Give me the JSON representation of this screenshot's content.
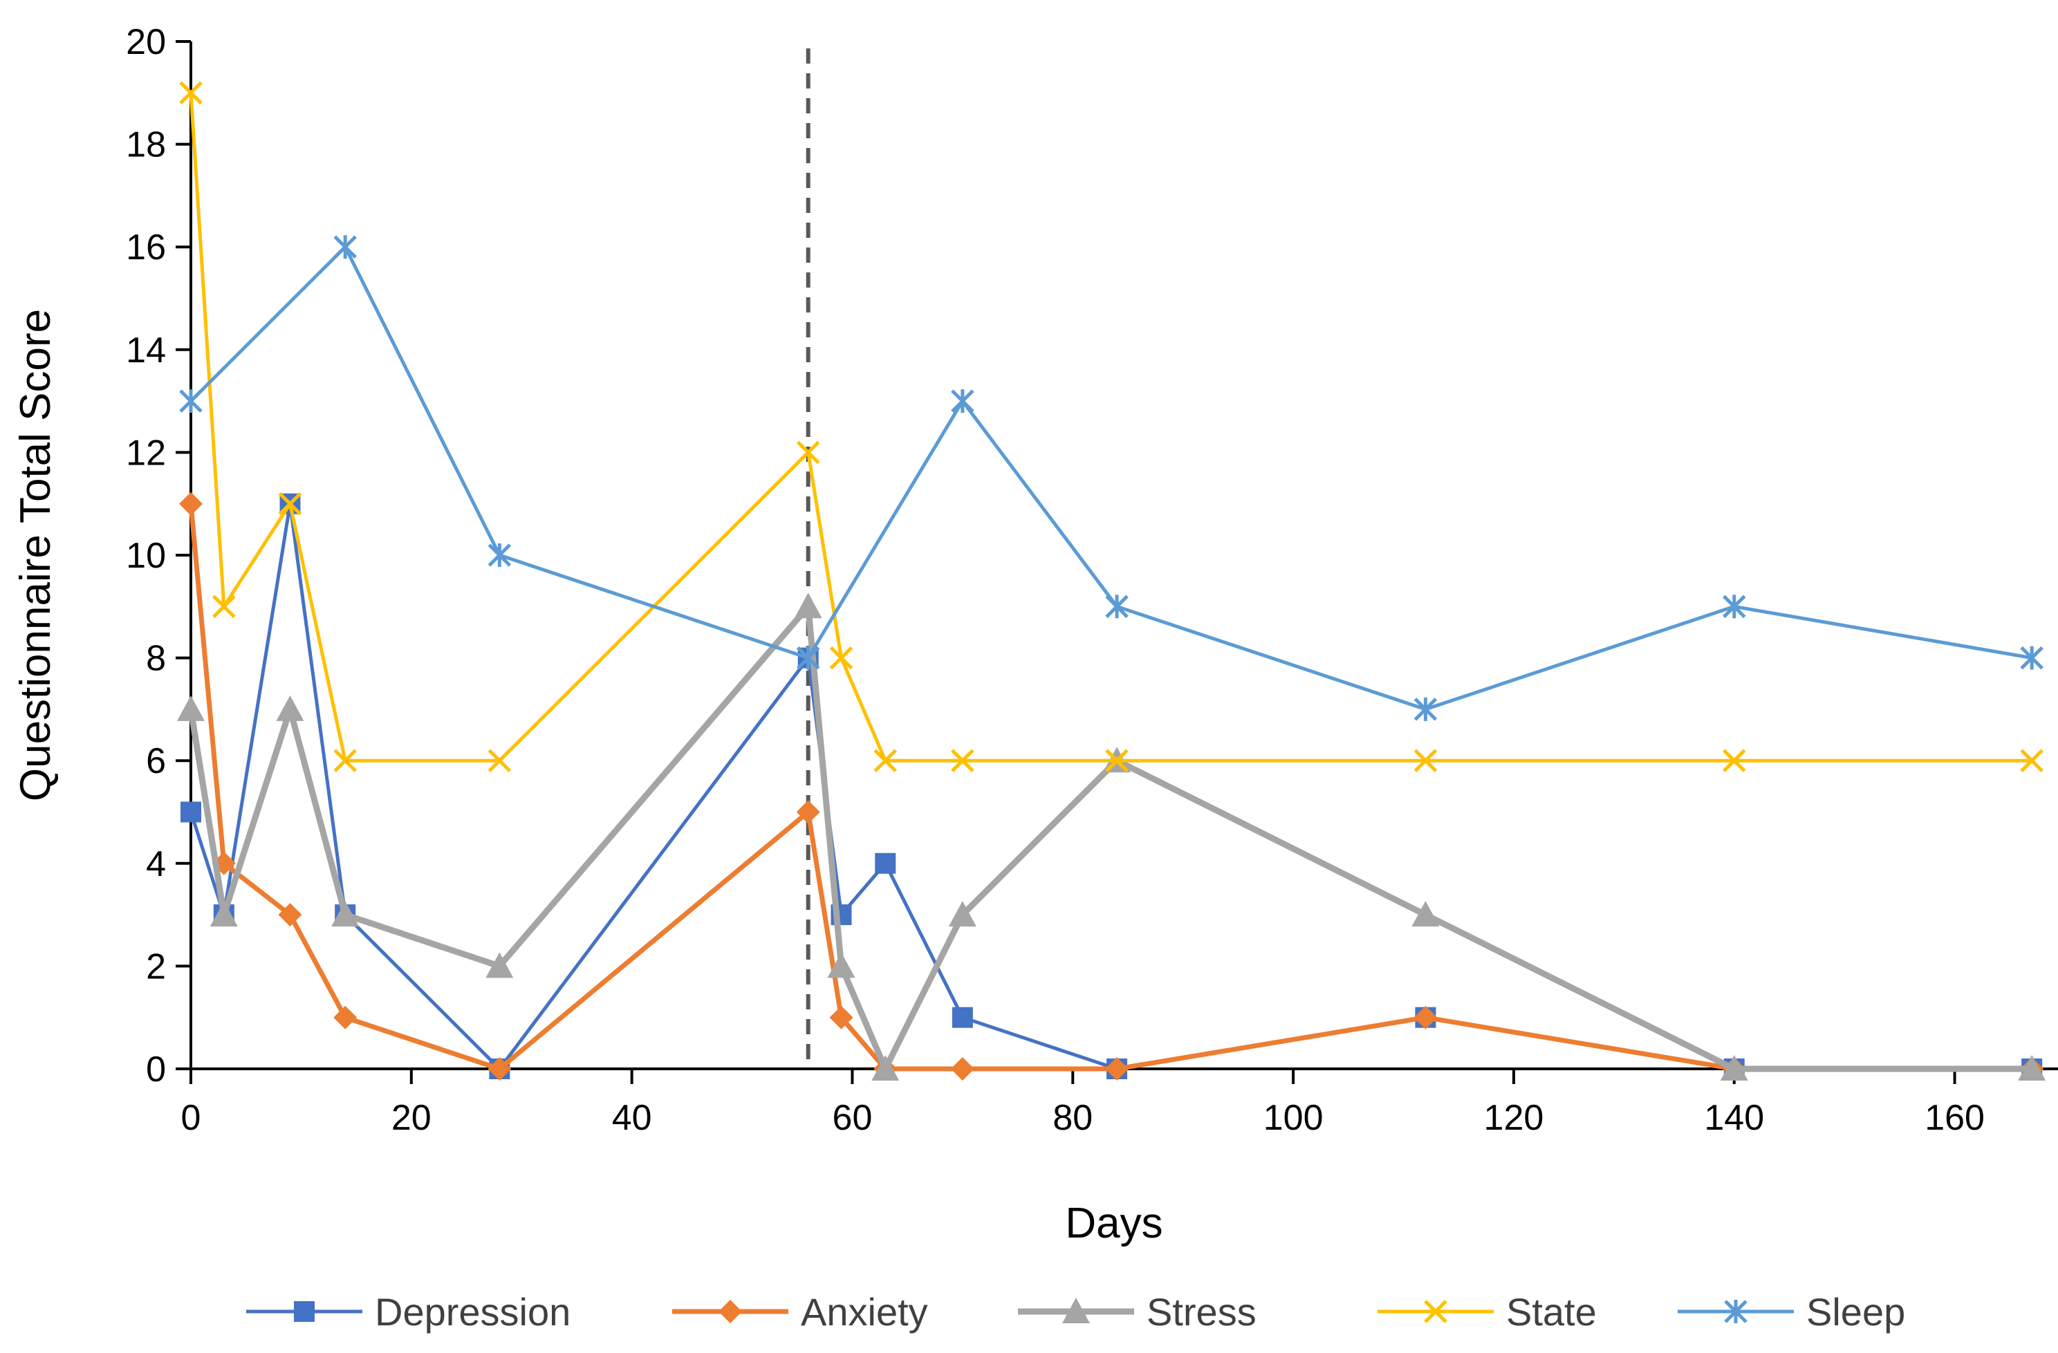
{
  "chart_data": {
    "type": "line",
    "title": "",
    "xlabel": "Days",
    "ylabel": "Questionnaire Total Score",
    "xlim": [
      0,
      170
    ],
    "ylim": [
      0,
      20
    ],
    "x_ticks": [
      0,
      20,
      40,
      60,
      80,
      100,
      120,
      140,
      160
    ],
    "y_ticks": [
      0,
      2,
      4,
      6,
      8,
      10,
      12,
      14,
      16,
      18,
      20
    ],
    "grid": false,
    "legend_position": "bottom",
    "reference_line": {
      "x": 56,
      "style": "dashed",
      "color": "#595959"
    },
    "series": [
      {
        "name": "Depression",
        "color": "#4472C4",
        "marker": "square",
        "points": [
          [
            0,
            5
          ],
          [
            3,
            3
          ],
          [
            9,
            11
          ],
          [
            14,
            3
          ],
          [
            28,
            0
          ],
          [
            56,
            8
          ],
          [
            59,
            3
          ],
          [
            63,
            4
          ],
          [
            70,
            1
          ],
          [
            84,
            0
          ],
          [
            112,
            1
          ],
          [
            140,
            0
          ],
          [
            167,
            0
          ]
        ]
      },
      {
        "name": "Anxiety",
        "color": "#ED7D31",
        "marker": "diamond",
        "points": [
          [
            0,
            11
          ],
          [
            3,
            4
          ],
          [
            9,
            3
          ],
          [
            14,
            1
          ],
          [
            28,
            0
          ],
          [
            56,
            5
          ],
          [
            59,
            1
          ],
          [
            63,
            0
          ],
          [
            70,
            0
          ],
          [
            84,
            0
          ],
          [
            112,
            1
          ],
          [
            140,
            0
          ],
          [
            167,
            0
          ]
        ]
      },
      {
        "name": "Stress",
        "color": "#A5A5A5",
        "marker": "triangle",
        "points": [
          [
            0,
            7
          ],
          [
            3,
            3
          ],
          [
            9,
            7
          ],
          [
            14,
            3
          ],
          [
            28,
            2
          ],
          [
            56,
            9
          ],
          [
            59,
            2
          ],
          [
            63,
            0
          ],
          [
            70,
            3
          ],
          [
            84,
            6
          ],
          [
            112,
            3
          ],
          [
            140,
            0
          ],
          [
            167,
            0
          ]
        ]
      },
      {
        "name": "State",
        "color": "#FFC000",
        "marker": "x",
        "points": [
          [
            0,
            19
          ],
          [
            3,
            9
          ],
          [
            9,
            11
          ],
          [
            14,
            6
          ],
          [
            28,
            6
          ],
          [
            56,
            12
          ],
          [
            59,
            8
          ],
          [
            63,
            6
          ],
          [
            70,
            6
          ],
          [
            84,
            6
          ],
          [
            112,
            6
          ],
          [
            140,
            6
          ],
          [
            167,
            6
          ]
        ]
      },
      {
        "name": "Sleep",
        "color": "#5B9BD5",
        "marker": "star",
        "points": [
          [
            0,
            13
          ],
          [
            14,
            16
          ],
          [
            28,
            10
          ],
          [
            56,
            8
          ],
          [
            70,
            13
          ],
          [
            84,
            9
          ],
          [
            112,
            7
          ],
          [
            140,
            9
          ],
          [
            167,
            8
          ]
        ]
      }
    ]
  }
}
